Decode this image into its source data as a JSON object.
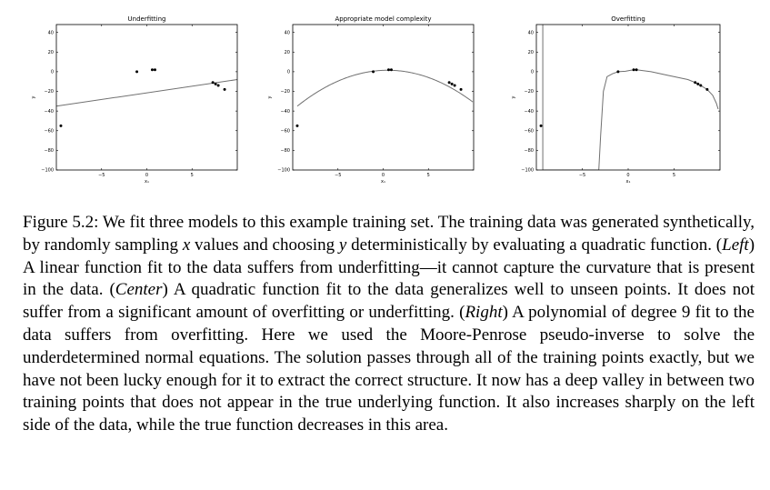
{
  "figure": {
    "panels": [
      {
        "title": "Underfitting",
        "xlabel": "x₁",
        "ylabel": "y",
        "xticks": [
          "−5",
          "0",
          "5"
        ],
        "yticks": [
          "40",
          "20",
          "0",
          "−20",
          "−40",
          "−60",
          "−80",
          "−100"
        ]
      },
      {
        "title": "Appropriate model complexity",
        "xlabel": "x₁",
        "ylabel": "y",
        "xticks": [
          "−5",
          "0",
          "5"
        ],
        "yticks": [
          "40",
          "20",
          "0",
          "−20",
          "−40",
          "−60",
          "−80",
          "−100"
        ]
      },
      {
        "title": "Overfitting",
        "xlabel": "x₁",
        "ylabel": "y",
        "xticks": [
          "−5",
          "0",
          "5"
        ],
        "yticks": [
          "40",
          "20",
          "0",
          "−20",
          "−40",
          "−60",
          "−80",
          "−100"
        ]
      }
    ]
  },
  "chart_data": [
    {
      "type": "scatter",
      "title": "Underfitting",
      "xlabel": "x₁",
      "ylabel": "y",
      "xlim": [
        -10,
        10
      ],
      "ylim": [
        -100,
        48
      ],
      "points": [
        [
          -9.5,
          -55
        ],
        [
          -1.1,
          0
        ],
        [
          0.6,
          2
        ],
        [
          0.9,
          2
        ],
        [
          7.3,
          -11
        ],
        [
          7.6,
          -12.5
        ],
        [
          7.9,
          -14
        ],
        [
          8.6,
          -18
        ]
      ],
      "fit": {
        "kind": "linear",
        "slope": 1.35,
        "intercept": -21.5
      }
    },
    {
      "type": "scatter",
      "title": "Appropriate model complexity",
      "xlabel": "x₁",
      "ylabel": "y",
      "xlim": [
        -10,
        10
      ],
      "ylim": [
        -100,
        48
      ],
      "points": [
        [
          -9.5,
          -55
        ],
        [
          -1.1,
          0
        ],
        [
          0.6,
          2
        ],
        [
          0.9,
          2
        ],
        [
          7.3,
          -11
        ],
        [
          7.6,
          -12.5
        ],
        [
          7.9,
          -14
        ],
        [
          8.6,
          -18
        ]
      ],
      "fit": {
        "kind": "quadratic",
        "a": -0.365,
        "b": 0.37,
        "c": 1.4
      }
    },
    {
      "type": "scatter",
      "title": "Overfitting",
      "xlabel": "x₁",
      "ylabel": "y",
      "xlim": [
        -10,
        10
      ],
      "ylim": [
        -100,
        48
      ],
      "points": [
        [
          -9.5,
          -55
        ],
        [
          -1.1,
          0
        ],
        [
          0.6,
          2
        ],
        [
          0.9,
          2
        ],
        [
          7.3,
          -11
        ],
        [
          7.6,
          -12.5
        ],
        [
          7.9,
          -14
        ],
        [
          8.6,
          -18
        ]
      ],
      "fit": {
        "kind": "polyline",
        "points": [
          [
            -9.3,
            48
          ],
          [
            -9.3,
            -100
          ],
          [
            -3.2,
            -100
          ],
          [
            -3.0,
            -65
          ],
          [
            -2.7,
            -20
          ],
          [
            -2.3,
            -5
          ],
          [
            -1.7,
            -2
          ],
          [
            -1.1,
            0
          ],
          [
            -0.3,
            0.5
          ],
          [
            0.3,
            1.5
          ],
          [
            0.9,
            2
          ],
          [
            2.5,
            0
          ],
          [
            4.5,
            -4
          ],
          [
            6.5,
            -8
          ],
          [
            7.3,
            -11
          ],
          [
            7.9,
            -14
          ],
          [
            8.6,
            -18
          ],
          [
            9.2,
            -24
          ],
          [
            9.6,
            -32
          ],
          [
            9.8,
            -38
          ]
        ]
      }
    }
  ],
  "caption": {
    "lines": [
      [
        {
          "t": "Figure 5.2: We fit three models to this example training set. The training data was"
        }
      ],
      [
        {
          "t": "generated synthetically, by randomly sampling "
        },
        {
          "t": "x",
          "i": true
        },
        {
          "t": " values and choosing "
        },
        {
          "t": "y",
          "i": true
        },
        {
          "t": " deterministically"
        }
      ],
      [
        {
          "t": "by evaluating a quadratic function. ("
        },
        {
          "t": "Left",
          "i": true
        },
        {
          "t": ") A linear function fit to the data suffers from"
        }
      ],
      [
        {
          "t": "underfitting—it cannot capture the curvature that is present in the data. ("
        },
        {
          "t": "Center",
          "i": true
        },
        {
          "t": ") A"
        }
      ],
      [
        {
          "t": "quadratic function fit to the data generalizes well to unseen points. It does not suffer"
        }
      ],
      [
        {
          "t": "from a significant amount of overfitting or underfitting. ("
        },
        {
          "t": "Right",
          "i": true
        },
        {
          "t": ") A polynomial of degree"
        }
      ],
      [
        {
          "t": "9 fit to the data suffers from overfitting. Here we used the Moore-Penrose pseudo-inverse"
        }
      ],
      [
        {
          "t": "to solve the underdetermined normal equations. The solution passes through all of the"
        }
      ],
      [
        {
          "t": "training points exactly, but we have not been lucky enough for it to extract the correct"
        }
      ],
      [
        {
          "t": "structure. It now has a deep valley in between two training points that does not appear"
        }
      ],
      [
        {
          "t": "in the true underlying function. It also increases sharply on the left side of the data,"
        }
      ],
      [
        {
          "t": "while the true function decreases in this area."
        }
      ]
    ]
  }
}
